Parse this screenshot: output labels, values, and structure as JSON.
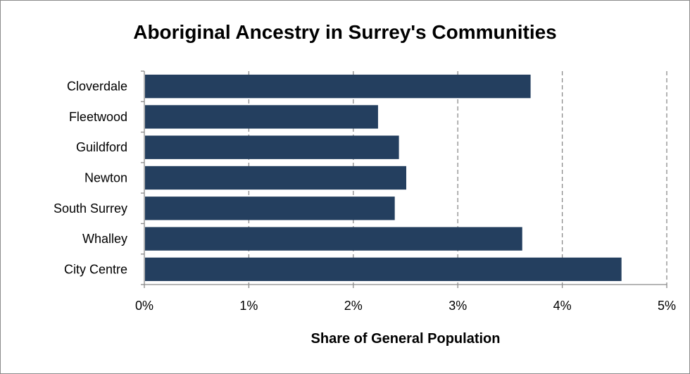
{
  "chart_data": {
    "type": "bar",
    "orientation": "horizontal",
    "title": "Aboriginal Ancestry in Surrey's Communities",
    "xlabel": "Share of General Population",
    "ylabel": "",
    "categories": [
      "Cloverdale",
      "Fleetwood",
      "Guildford",
      "Newton",
      "South Surrey",
      "Whalley",
      "City Centre"
    ],
    "values": [
      3.69,
      2.23,
      2.43,
      2.5,
      2.39,
      3.61,
      4.56
    ],
    "xlim": [
      0,
      5
    ],
    "xticks": [
      0,
      1,
      2,
      3,
      4,
      5
    ],
    "xtick_labels": [
      "0%",
      "1%",
      "2%",
      "3%",
      "4%",
      "5%"
    ],
    "grid": "vertical dashed",
    "legend": "none",
    "bar_color": "#243f5f"
  }
}
